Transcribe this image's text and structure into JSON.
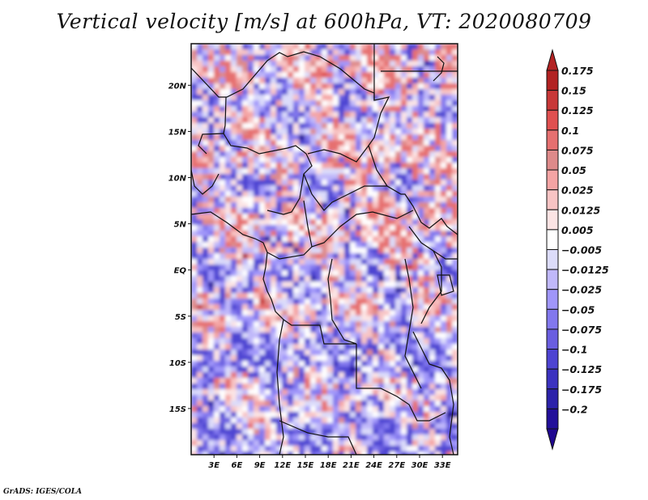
{
  "title": "Vertical velocity [m/s] at 600hPa, VT: 2020080709",
  "credit": "GrADS: IGES/COLA",
  "chart_data": {
    "type": "heatmap",
    "title": "Vertical velocity [m/s] at 600hPa, VT: 2020080709",
    "variable": "Vertical velocity",
    "units": "m/s",
    "level": "600hPa",
    "valid_time": "2020080709",
    "xlabel": "",
    "ylabel": "",
    "lon_range": [
      0,
      35
    ],
    "lat_range": [
      -20,
      24.5
    ],
    "x_ticks": [
      {
        "value": 3,
        "label": "3E"
      },
      {
        "value": 6,
        "label": "6E"
      },
      {
        "value": 9,
        "label": "9E"
      },
      {
        "value": 12,
        "label": "12E"
      },
      {
        "value": 15,
        "label": "15E"
      },
      {
        "value": 18,
        "label": "18E"
      },
      {
        "value": 21,
        "label": "21E"
      },
      {
        "value": 24,
        "label": "24E"
      },
      {
        "value": 27,
        "label": "27E"
      },
      {
        "value": 30,
        "label": "30E"
      },
      {
        "value": 33,
        "label": "33E"
      }
    ],
    "y_ticks": [
      {
        "value": 20,
        "label": "20N"
      },
      {
        "value": 15,
        "label": "15N"
      },
      {
        "value": 10,
        "label": "10N"
      },
      {
        "value": 5,
        "label": "5N"
      },
      {
        "value": 0,
        "label": "EQ"
      },
      {
        "value": -5,
        "label": "5S"
      },
      {
        "value": -10,
        "label": "10S"
      },
      {
        "value": -15,
        "label": "15S"
      }
    ],
    "colorbar": {
      "placement": "right",
      "levels": [
        "0.175",
        "0.15",
        "0.125",
        "0.1",
        "0.075",
        "0.05",
        "0.025",
        "0.0125",
        "0.005",
        "-0.005",
        "-0.0125",
        "-0.025",
        "-0.05",
        "-0.075",
        "-0.1",
        "-0.125",
        "-0.175",
        "-0.2"
      ],
      "colors": [
        "#b22222",
        "#c83838",
        "#e05050",
        "#e67070",
        "#de8a8a",
        "#f4a4a4",
        "#f8c4c4",
        "#fce4e4",
        "#ffffff",
        "#dcdcfa",
        "#c0b8fa",
        "#a096fa",
        "#8278ee",
        "#6a5ee0",
        "#4e44d2",
        "#3c32c0",
        "#2c22aa",
        "#220f9a"
      ],
      "over_color": "#b22222",
      "under_color": "#200890"
    },
    "grid": false,
    "overlay": "country borders and coastlines",
    "field_description": "noisy mesoscale pattern; stronger red/blue speckle over Chad/Sudan and the Congo basin, predominantly light blue over southern Atlantic and Angola"
  }
}
